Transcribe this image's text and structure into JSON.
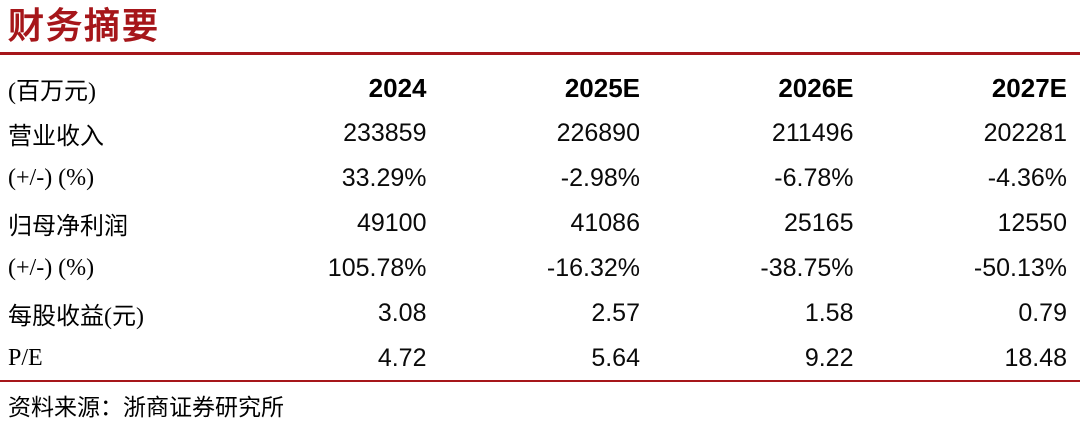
{
  "title": "财务摘要",
  "colors": {
    "accent": "#A6161A",
    "text": "#000000"
  },
  "table": {
    "unit_label": "(百万元)",
    "columns": [
      "2024",
      "2025E",
      "2026E",
      "2027E"
    ],
    "rows": [
      {
        "label": "营业收入",
        "values": [
          "233859",
          "226890",
          "211496",
          "202281"
        ]
      },
      {
        "label": "(+/-) (%)",
        "values": [
          "33.29%",
          "-2.98%",
          "-6.78%",
          "-4.36%"
        ]
      },
      {
        "label": "归母净利润",
        "values": [
          "49100",
          "41086",
          "25165",
          "12550"
        ]
      },
      {
        "label": "(+/-) (%)",
        "values": [
          "105.78%",
          "-16.32%",
          "-38.75%",
          "-50.13%"
        ]
      },
      {
        "label": "每股收益(元)",
        "values": [
          "3.08",
          "2.57",
          "1.58",
          "0.79"
        ]
      },
      {
        "label": "P/E",
        "values": [
          "4.72",
          "5.64",
          "9.22",
          "18.48"
        ]
      }
    ]
  },
  "footer": {
    "source": "资料来源：浙商证券研究所"
  }
}
